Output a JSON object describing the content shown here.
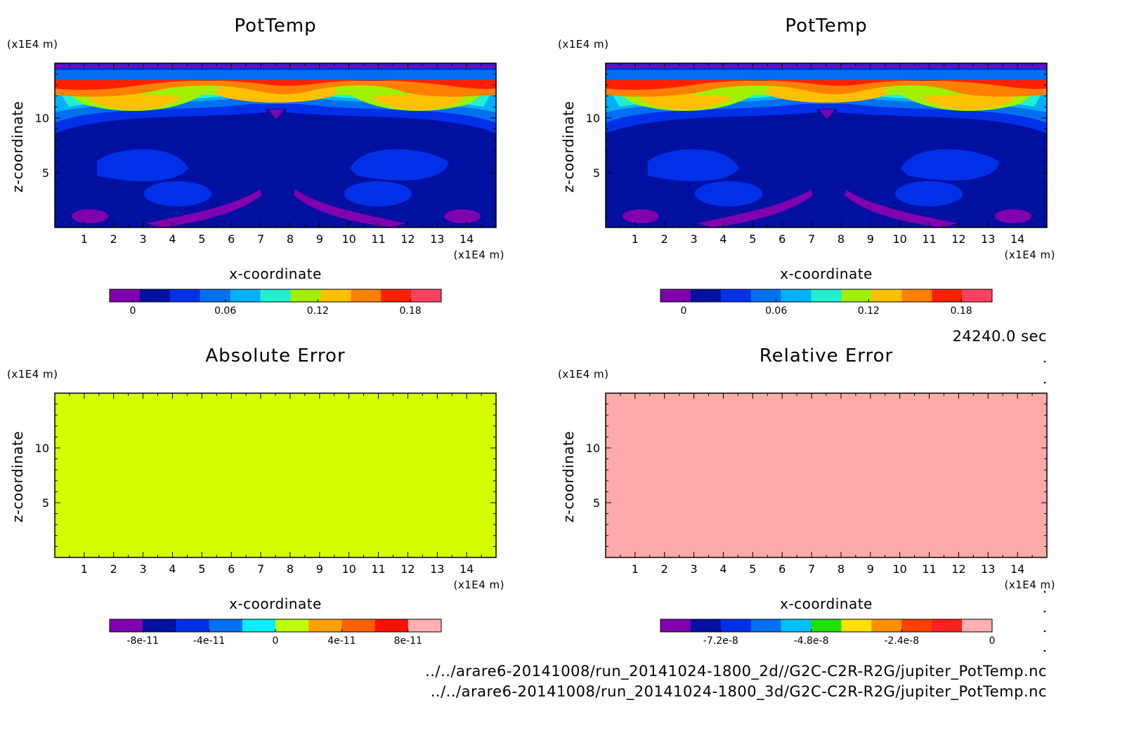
{
  "time_label": "24240.0 sec",
  "footer": {
    "file1": "../../arare6-20141008/run_20141024-1800_2d//G2C-C2R-R2G/jupiter_PotTemp.nc",
    "file2": "../../arare6-20141008/run_20141024-1800_3d/G2C-C2R-R2G/jupiter_PotTemp.nc"
  },
  "chart_data": [
    {
      "type": "heatmap",
      "title": "PotTemp",
      "xlabel": "x-coordinate",
      "ylabel": "z-coordinate",
      "x_unit": "(x1E4 m)",
      "z_unit": "(x1E4 m)",
      "xlim": [
        0,
        15
      ],
      "zlim": [
        0,
        15
      ],
      "x_ticks": [
        "1",
        "2",
        "3",
        "4",
        "5",
        "6",
        "7",
        "8",
        "9",
        "10",
        "11",
        "12",
        "13",
        "14"
      ],
      "z_ticks": [
        "5",
        "10"
      ],
      "field": "contour field: near-surface values ~0 to 0.03 below z≈10, warm layer 0.12–0.2 between z≈10 and z≈14, symmetric about x≈7.5",
      "colorbar": {
        "colors": [
          "#8000b0",
          "#0010a0",
          "#0030e8",
          "#0070f0",
          "#00b0ff",
          "#20f0d0",
          "#a0f000",
          "#ffc000",
          "#ff8000",
          "#ff2000",
          "#ff4060"
        ],
        "tick_labels": [
          "0",
          "0.06",
          "0.12",
          "0.18"
        ],
        "tick_values": [
          0,
          0.06,
          0.12,
          0.18
        ],
        "range": [
          -0.015,
          0.2
        ]
      }
    },
    {
      "type": "heatmap",
      "title": "PotTemp",
      "xlabel": "x-coordinate",
      "ylabel": "z-coordinate",
      "x_unit": "(x1E4 m)",
      "z_unit": "(x1E4 m)",
      "xlim": [
        0,
        15
      ],
      "zlim": [
        0,
        15
      ],
      "x_ticks": [
        "1",
        "2",
        "3",
        "4",
        "5",
        "6",
        "7",
        "8",
        "9",
        "10",
        "11",
        "12",
        "13",
        "14"
      ],
      "z_ticks": [
        "5",
        "10"
      ],
      "colorbar": {
        "colors": [
          "#8000b0",
          "#0010a0",
          "#0030e8",
          "#0070f0",
          "#00b0ff",
          "#20f0d0",
          "#a0f000",
          "#ffc000",
          "#ff8000",
          "#ff2000",
          "#ff4060"
        ],
        "tick_labels": [
          "0",
          "0.06",
          "0.12",
          "0.18"
        ],
        "tick_values": [
          0,
          0.06,
          0.12,
          0.18
        ],
        "range": [
          -0.015,
          0.2
        ]
      }
    },
    {
      "type": "heatmap",
      "title": "Absolute Error",
      "xlabel": "x-coordinate",
      "ylabel": "z-coordinate",
      "x_unit": "(x1E4 m)",
      "z_unit": "(x1E4 m)",
      "xlim": [
        0,
        15
      ],
      "zlim": [
        0,
        15
      ],
      "x_ticks": [
        "1",
        "2",
        "3",
        "4",
        "5",
        "6",
        "7",
        "8",
        "9",
        "10",
        "11",
        "12",
        "13",
        "14"
      ],
      "z_ticks": [
        "5",
        "10"
      ],
      "fill_color": "#d4ff00",
      "colorbar": {
        "colors": [
          "#8000b0",
          "#0010a0",
          "#0030e8",
          "#0070f0",
          "#00f0ff",
          "#c0ff00",
          "#ffa000",
          "#ff6000",
          "#ff1000",
          "#ffb0b0"
        ],
        "tick_labels": [
          "-8e-11",
          "-4e-11",
          "0",
          "4e-11",
          "8e-11"
        ],
        "tick_values": [
          -8e-11,
          -4e-11,
          0,
          4e-11,
          8e-11
        ],
        "range": [
          -1e-10,
          1e-10
        ]
      }
    },
    {
      "type": "heatmap",
      "title": "Relative Error",
      "xlabel": "x-coordinate",
      "ylabel": "z-coordinate",
      "x_unit": "(x1E4 m)",
      "z_unit": "(x1E4 m)",
      "xlim": [
        0,
        15
      ],
      "zlim": [
        0,
        15
      ],
      "x_ticks": [
        "1",
        "2",
        "3",
        "4",
        "5",
        "6",
        "7",
        "8",
        "9",
        "10",
        "11",
        "12",
        "13",
        "14"
      ],
      "z_ticks": [
        "5",
        "10"
      ],
      "fill_color": "#ffaaaa",
      "colorbar": {
        "colors": [
          "#8000b0",
          "#0010a0",
          "#0030e8",
          "#0070f0",
          "#00c0ff",
          "#20e000",
          "#ffe000",
          "#ff9000",
          "#ff4000",
          "#ff2020",
          "#ffb0b0"
        ],
        "tick_labels": [
          "-7.2e-8",
          "-4.8e-8",
          "-2.4e-8",
          "0"
        ],
        "tick_values": [
          -7.2e-08,
          -4.8e-08,
          -2.4e-08,
          0
        ],
        "range": [
          -8.8e-08,
          0
        ]
      }
    }
  ]
}
